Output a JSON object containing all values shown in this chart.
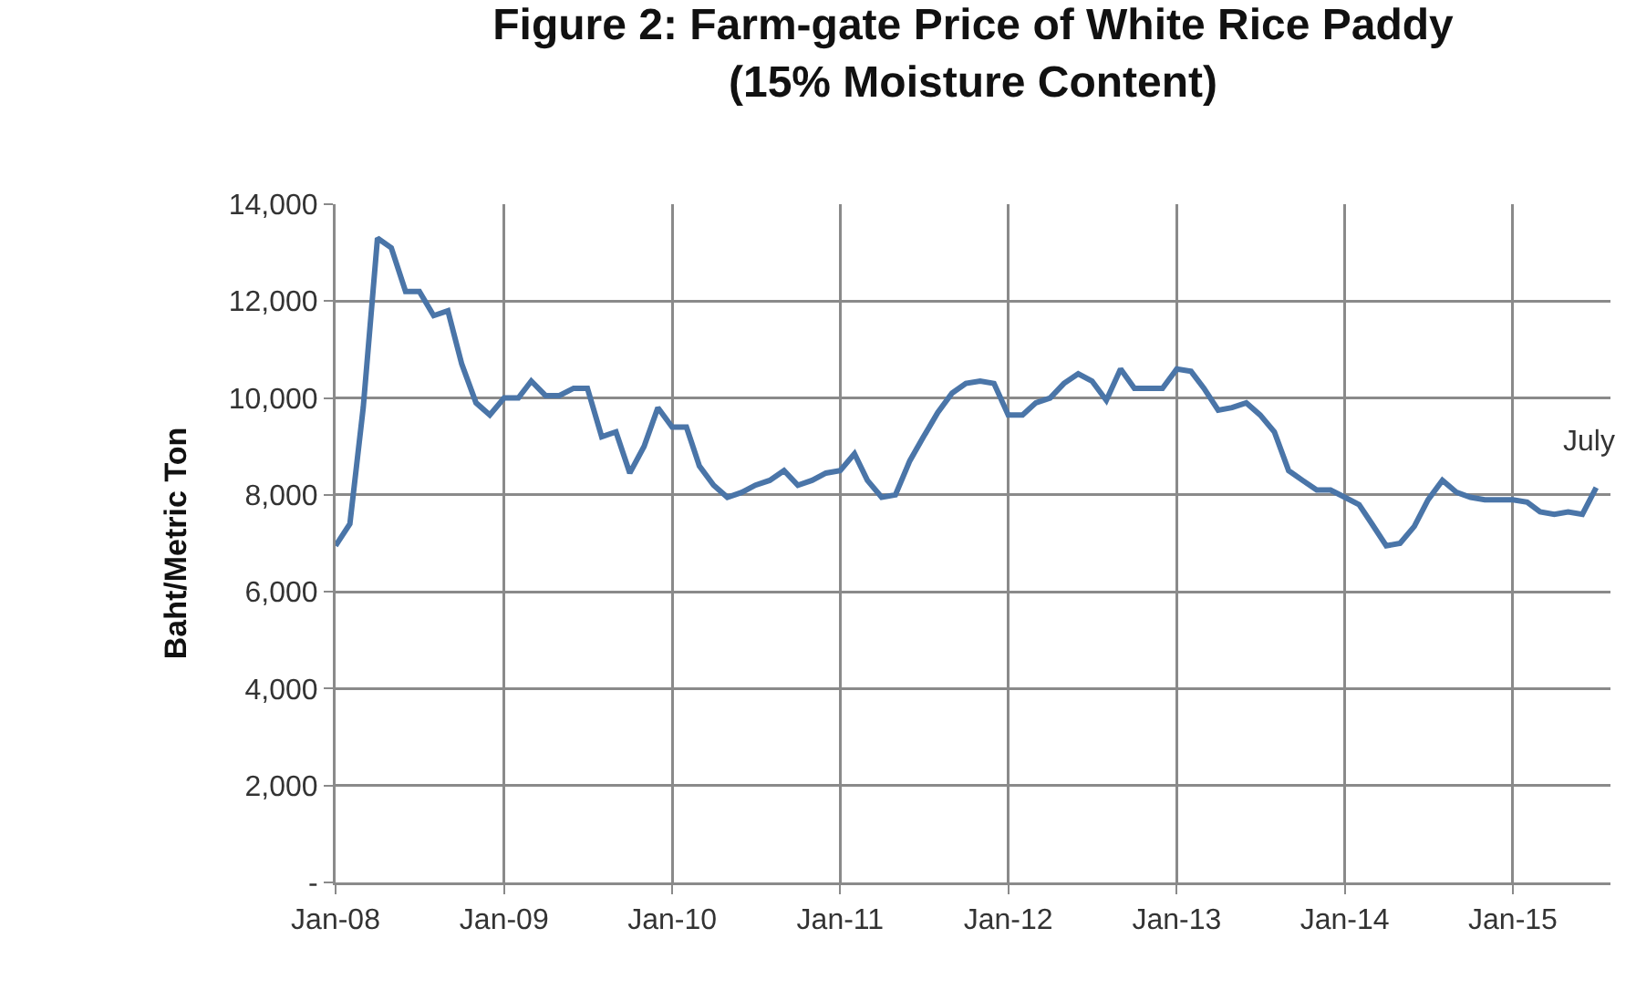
{
  "chart_data": {
    "type": "line",
    "title": "Figure 2: Farm-gate Price of White Rice Paddy\n(15% Moisture Content)",
    "ylabel": "Baht/Metric Ton",
    "x": [
      "2008-01",
      "2008-02",
      "2008-03",
      "2008-04",
      "2008-05",
      "2008-06",
      "2008-07",
      "2008-08",
      "2008-09",
      "2008-10",
      "2008-11",
      "2008-12",
      "2009-01",
      "2009-02",
      "2009-03",
      "2009-04",
      "2009-05",
      "2009-06",
      "2009-07",
      "2009-08",
      "2009-09",
      "2009-10",
      "2009-11",
      "2009-12",
      "2010-01",
      "2010-02",
      "2010-03",
      "2010-04",
      "2010-05",
      "2010-06",
      "2010-07",
      "2010-08",
      "2010-09",
      "2010-10",
      "2010-11",
      "2010-12",
      "2011-01",
      "2011-02",
      "2011-03",
      "2011-04",
      "2011-05",
      "2011-06",
      "2011-07",
      "2011-08",
      "2011-09",
      "2011-10",
      "2011-11",
      "2011-12",
      "2012-01",
      "2012-02",
      "2012-03",
      "2012-04",
      "2012-05",
      "2012-06",
      "2012-07",
      "2012-08",
      "2012-09",
      "2012-10",
      "2012-11",
      "2012-12",
      "2013-01",
      "2013-02",
      "2013-03",
      "2013-04",
      "2013-05",
      "2013-06",
      "2013-07",
      "2013-08",
      "2013-09",
      "2013-10",
      "2013-11",
      "2013-12",
      "2014-01",
      "2014-02",
      "2014-03",
      "2014-04",
      "2014-05",
      "2014-06",
      "2014-07",
      "2014-08",
      "2014-09",
      "2014-10",
      "2014-11",
      "2014-12",
      "2015-01",
      "2015-02",
      "2015-03",
      "2015-04",
      "2015-05",
      "2015-06",
      "2015-07"
    ],
    "series": [
      {
        "color": "#4a75a8",
        "values": [
          6950,
          7400,
          9800,
          13300,
          13100,
          12200,
          12200,
          11700,
          11800,
          10700,
          9900,
          9650,
          10000,
          10000,
          10350,
          10050,
          10050,
          10200,
          10200,
          9200,
          9300,
          8450,
          9000,
          9800,
          9400,
          9400,
          8600,
          8200,
          7950,
          8050,
          8200,
          8300,
          8500,
          8200,
          8300,
          8450,
          8500,
          8850,
          8300,
          7950,
          8000,
          8700,
          9200,
          9700,
          10100,
          10300,
          10350,
          10300,
          9650,
          9650,
          9900,
          10000,
          10300,
          10500,
          10350,
          9950,
          10600,
          10200,
          10200,
          10200,
          10600,
          10550,
          10200,
          9750,
          9800,
          9900,
          9650,
          9300,
          8500,
          8300,
          8100,
          8100,
          7950,
          7800,
          7400,
          6950,
          7000,
          7350,
          7900,
          8300,
          8050,
          7950,
          7900,
          7900,
          7900,
          7850,
          7650,
          7600,
          7650,
          7600,
          8150
        ]
      }
    ],
    "annotations": [
      {
        "text": "July",
        "x": "2015-07",
        "y": 8150
      }
    ],
    "xlim": [
      "2008-01",
      "2015-08"
    ],
    "xticks": [
      {
        "value": "2008-01",
        "label": "Jan-08"
      },
      {
        "value": "2009-01",
        "label": "Jan-09"
      },
      {
        "value": "2010-01",
        "label": "Jan-10"
      },
      {
        "value": "2011-01",
        "label": "Jan-11"
      },
      {
        "value": "2012-01",
        "label": "Jan-12"
      },
      {
        "value": "2013-01",
        "label": "Jan-13"
      },
      {
        "value": "2014-01",
        "label": "Jan-14"
      },
      {
        "value": "2015-01",
        "label": "Jan-15"
      }
    ],
    "ylim": [
      0,
      14000
    ],
    "yticks": [
      {
        "value": 0,
        "label": "-"
      },
      {
        "value": 2000,
        "label": "2,000"
      },
      {
        "value": 4000,
        "label": "4,000"
      },
      {
        "value": 6000,
        "label": "6,000"
      },
      {
        "value": 8000,
        "label": "8,000"
      },
      {
        "value": 10000,
        "label": "10,000"
      },
      {
        "value": 12000,
        "label": "12,000"
      },
      {
        "value": 14000,
        "label": "14,000"
      }
    ],
    "grid": true,
    "marker": "none",
    "line_style": "solid"
  }
}
